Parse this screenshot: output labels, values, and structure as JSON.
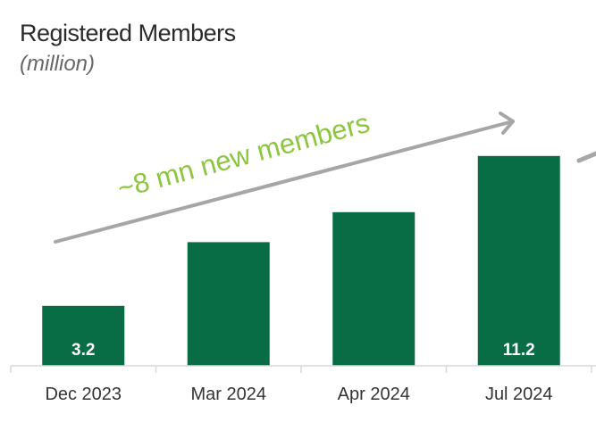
{
  "chart_data": {
    "type": "bar",
    "title": "Registered Members",
    "subtitle": "(million)",
    "xlabel": "",
    "ylabel": "",
    "categories": [
      "Dec 2023",
      "Mar 2024",
      "Apr 2024",
      "Jul 2024"
    ],
    "values": [
      3.2,
      6.6,
      8.2,
      11.2
    ],
    "data_labels": [
      "3.2",
      "",
      "",
      "11.2"
    ],
    "ylim": [
      0,
      11.7
    ],
    "grid": false,
    "annotation": "~8 mn new members",
    "colors": {
      "bar": "#086c45",
      "annotation": "#8cc63f",
      "arrow": "#a6a6a6",
      "axis": "#d9d9d9"
    }
  }
}
